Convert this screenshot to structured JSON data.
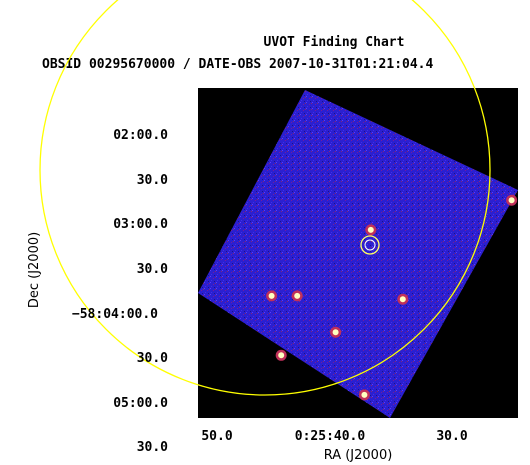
{
  "chart_data": {
    "type": "image",
    "title": "UVOT Finding Chart",
    "subtitle": "OBSID 00295670000 / DATE-OBS 2007-10-31T01:21:04.4",
    "xlabel": "RA (J2000)",
    "ylabel": "Dec (J2000)",
    "x_tick_labels": [
      "50.0",
      "0:25:40.0",
      "30.0"
    ],
    "y_tick_labels": [
      "02:00.0",
      "30.0",
      "03:00.0",
      "30.0",
      "−58:04:00.0",
      "30.0",
      "05:00.0",
      "30.0"
    ],
    "grid": false,
    "colors": {
      "background": "#000000",
      "field": "#2b1fd0",
      "error_circle": "#ffff00",
      "source_marker": "#ffffc0"
    },
    "sources": [
      {
        "x": 0.54,
        "y": 0.43
      },
      {
        "x": 0.23,
        "y": 0.63
      },
      {
        "x": 0.31,
        "y": 0.63
      },
      {
        "x": 0.64,
        "y": 0.64
      },
      {
        "x": 0.43,
        "y": 0.74
      },
      {
        "x": 0.52,
        "y": 0.93
      },
      {
        "x": 0.98,
        "y": 0.34
      },
      {
        "x": 0.26,
        "y": 0.81
      }
    ]
  }
}
